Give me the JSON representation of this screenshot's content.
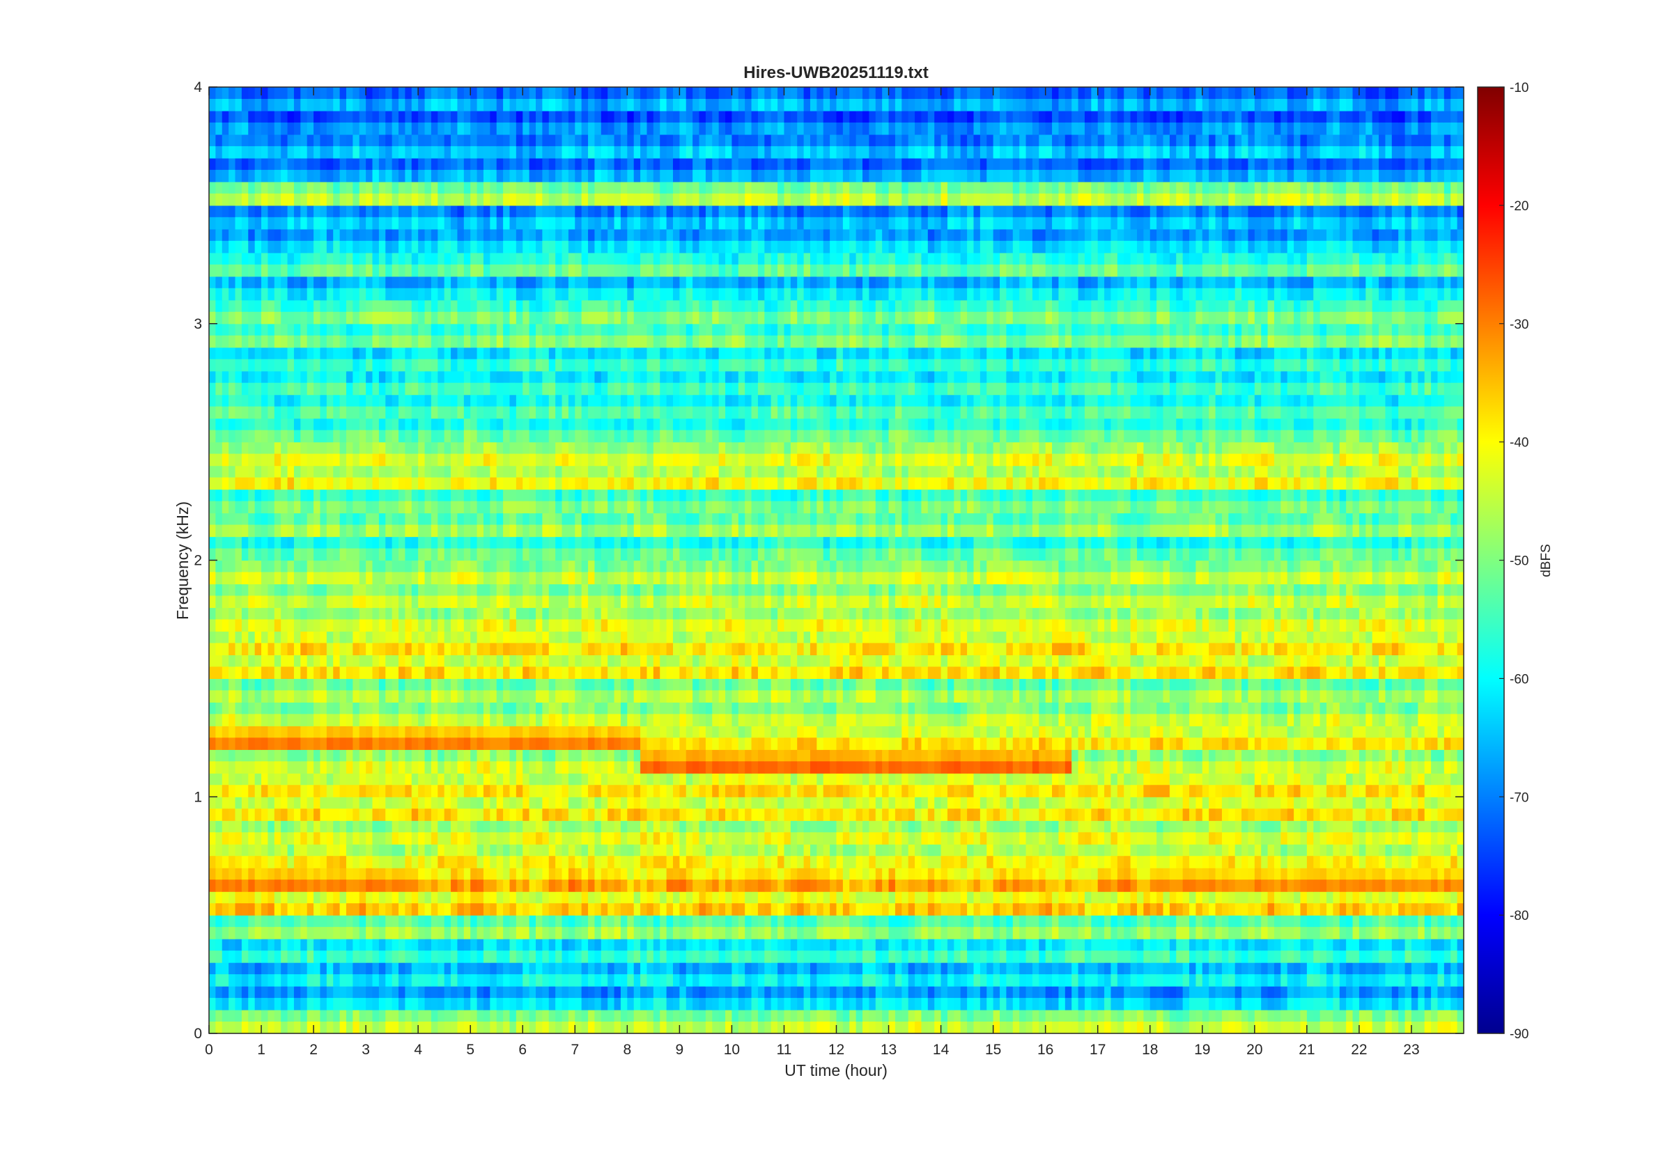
{
  "chart_data": {
    "type": "heatmap",
    "title": "Hires-UWB20251119.txt",
    "xlabel": "UT time (hour)",
    "ylabel": "Frequency (kHz)",
    "xlim": [
      0,
      24
    ],
    "ylim": [
      0,
      4
    ],
    "x_ticks": [
      0,
      1,
      2,
      3,
      4,
      5,
      6,
      7,
      8,
      9,
      10,
      11,
      12,
      13,
      14,
      15,
      16,
      17,
      18,
      19,
      20,
      21,
      22,
      23
    ],
    "y_ticks": [
      0,
      1,
      2,
      3,
      4
    ],
    "colormap": "jet",
    "colorbar": {
      "label": "dBFS",
      "range": [
        -90,
        -10
      ],
      "ticks": [
        -90,
        -80,
        -70,
        -60,
        -50,
        -40,
        -30,
        -20,
        -10
      ]
    },
    "frequency_bands_khz": [
      0.05,
      0.15,
      0.25,
      0.35,
      0.45,
      0.55,
      0.65,
      0.75,
      0.85,
      0.95,
      1.05,
      1.15,
      1.25,
      1.35,
      1.45,
      1.55,
      1.65,
      1.75,
      1.85,
      1.95,
      2.05,
      2.15,
      2.25,
      2.35,
      2.45,
      2.55,
      2.65,
      2.75,
      2.85,
      2.95,
      3.05,
      3.15,
      3.25,
      3.35,
      3.45,
      3.55,
      3.65,
      3.75,
      3.85,
      3.95
    ],
    "band_level_dbfs": [
      -44,
      -62,
      -60,
      -56,
      -48,
      -36,
      -33,
      -40,
      -42,
      -38,
      -38,
      -43,
      -38,
      -44,
      -46,
      -38,
      -38,
      -42,
      -44,
      -44,
      -52,
      -47,
      -50,
      -40,
      -42,
      -52,
      -54,
      -55,
      -56,
      -50,
      -50,
      -60,
      -52,
      -62,
      -64,
      -45,
      -66,
      -64,
      -68,
      -66
    ],
    "events": [
      {
        "f_khz": 1.15,
        "x_start": 8.3,
        "x_end": 16.5,
        "level_dbfs": -28
      },
      {
        "f_khz": 1.25,
        "x_start": 0.0,
        "x_end": 8.3,
        "level_dbfs": -30
      },
      {
        "f_khz": 0.65,
        "x_start": 0.0,
        "x_end": 3.5,
        "level_dbfs": -30
      },
      {
        "f_khz": 0.65,
        "x_start": 18.0,
        "x_end": 24.0,
        "level_dbfs": -31
      }
    ]
  }
}
